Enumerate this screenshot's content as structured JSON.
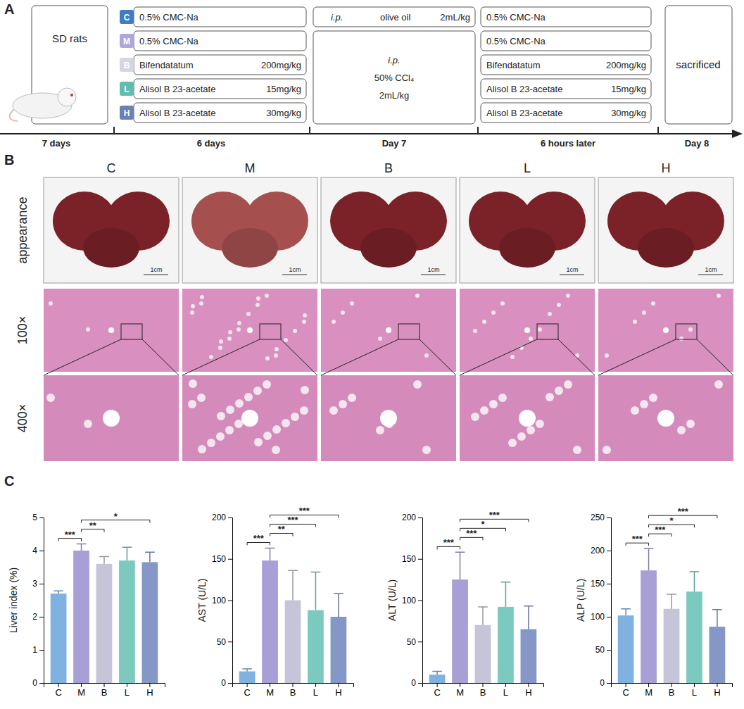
{
  "panel_a": {
    "label": "A",
    "subject": "SD rats",
    "groups": [
      {
        "code": "C",
        "color": "#3f7cc4",
        "pretreatment": {
          "drug": "0.5% CMC-Na"
        }
      },
      {
        "code": "M",
        "color": "#b0a6dc",
        "pretreatment": {
          "drug": "0.5% CMC-Na"
        }
      },
      {
        "code": "B",
        "color": "#d6d6e2",
        "pretreatment": {
          "drug": "Bifendatatum",
          "dose": "200mg/kg"
        }
      },
      {
        "code": "L",
        "color": "#5fbcae",
        "pretreatment": {
          "drug": "Alisol B 23-acetate",
          "dose": "15mg/kg"
        }
      },
      {
        "code": "H",
        "color": "#6b80b4",
        "pretreatment": {
          "drug": "Alisol B 23-acetate",
          "dose": "30mg/kg"
        }
      }
    ],
    "injections": [
      {
        "route": "i.p.",
        "agent": "olive oil",
        "dose": "2mL/kg"
      },
      {
        "route": "i.p.",
        "agent": "50% CCl₄",
        "dose": "2mL/kg"
      }
    ],
    "posttreatment": [
      {
        "drug": "0.5% CMC-Na"
      },
      {
        "drug": "0.5% CMC-Na"
      },
      {
        "drug": "Bifendatatum",
        "dose": "200mg/kg"
      },
      {
        "drug": "Alisol B 23-acetate",
        "dose": "15mg/kg"
      },
      {
        "drug": "Alisol B 23-acetate",
        "dose": "30mg/kg"
      }
    ],
    "end": "sacrificed",
    "timeline": [
      "7 days",
      "6 days",
      "Day 7",
      "6 hours later",
      "Day 8"
    ]
  },
  "panel_b": {
    "label": "B",
    "columns": [
      "C",
      "M",
      "B",
      "L",
      "H"
    ],
    "rows": [
      "appearance",
      "100×",
      "400×"
    ],
    "scale_bar": "1cm"
  },
  "panel_c": {
    "label": "C"
  },
  "chart_data": [
    {
      "type": "bar",
      "y_label": "Liver index (%)",
      "categories": [
        "C",
        "M",
        "B",
        "L",
        "H"
      ],
      "values": [
        2.7,
        4.0,
        3.6,
        3.7,
        3.65
      ],
      "errors": [
        0.08,
        0.2,
        0.22,
        0.4,
        0.3
      ],
      "colors": [
        "#7fb2e0",
        "#a79fd6",
        "#c5c4d8",
        "#7ccabf",
        "#8597c6"
      ],
      "ylim": [
        0,
        5
      ],
      "yticks": [
        0,
        1,
        2,
        3,
        4,
        5
      ],
      "comparisons": [
        {
          "from": "C",
          "to": "M",
          "label": "***"
        },
        {
          "from": "M",
          "to": "B",
          "label": "**"
        },
        {
          "from": "M",
          "to": "H",
          "label": "*"
        }
      ]
    },
    {
      "type": "bar",
      "y_label": "AST (U/L)",
      "categories": [
        "C",
        "M",
        "B",
        "L",
        "H"
      ],
      "values": [
        14,
        148,
        100,
        88,
        80
      ],
      "errors": [
        3,
        15,
        36,
        46,
        28
      ],
      "colors": [
        "#7fb2e0",
        "#a79fd6",
        "#c5c4d8",
        "#7ccabf",
        "#8597c6"
      ],
      "ylim": [
        0,
        200
      ],
      "yticks": [
        0,
        50,
        100,
        150,
        200
      ],
      "comparisons": [
        {
          "from": "C",
          "to": "M",
          "label": "***"
        },
        {
          "from": "M",
          "to": "B",
          "label": "**"
        },
        {
          "from": "M",
          "to": "L",
          "label": "***"
        },
        {
          "from": "M",
          "to": "H",
          "label": "***"
        }
      ]
    },
    {
      "type": "bar",
      "y_label": "ALT (U/L)",
      "categories": [
        "C",
        "M",
        "B",
        "L",
        "H"
      ],
      "values": [
        10,
        125,
        70,
        92,
        65
      ],
      "errors": [
        4,
        33,
        22,
        30,
        28
      ],
      "colors": [
        "#7fb2e0",
        "#a79fd6",
        "#c5c4d8",
        "#7ccabf",
        "#8597c6"
      ],
      "ylim": [
        0,
        200
      ],
      "yticks": [
        0,
        50,
        100,
        150,
        200
      ],
      "comparisons": [
        {
          "from": "C",
          "to": "M",
          "label": "***"
        },
        {
          "from": "M",
          "to": "B",
          "label": "***"
        },
        {
          "from": "M",
          "to": "L",
          "label": "*"
        },
        {
          "from": "M",
          "to": "H",
          "label": "***"
        }
      ]
    },
    {
      "type": "bar",
      "y_label": "ALP (U/L)",
      "categories": [
        "C",
        "M",
        "B",
        "L",
        "H"
      ],
      "values": [
        102,
        170,
        112,
        138,
        85
      ],
      "errors": [
        10,
        33,
        22,
        30,
        26
      ],
      "colors": [
        "#7fb2e0",
        "#a79fd6",
        "#c5c4d8",
        "#7ccabf",
        "#8597c6"
      ],
      "ylim": [
        0,
        250
      ],
      "yticks": [
        0,
        50,
        100,
        150,
        200,
        250
      ],
      "comparisons": [
        {
          "from": "C",
          "to": "M",
          "label": "***"
        },
        {
          "from": "M",
          "to": "B",
          "label": "***"
        },
        {
          "from": "M",
          "to": "L",
          "label": "*"
        },
        {
          "from": "M",
          "to": "H",
          "label": "***"
        }
      ]
    }
  ]
}
